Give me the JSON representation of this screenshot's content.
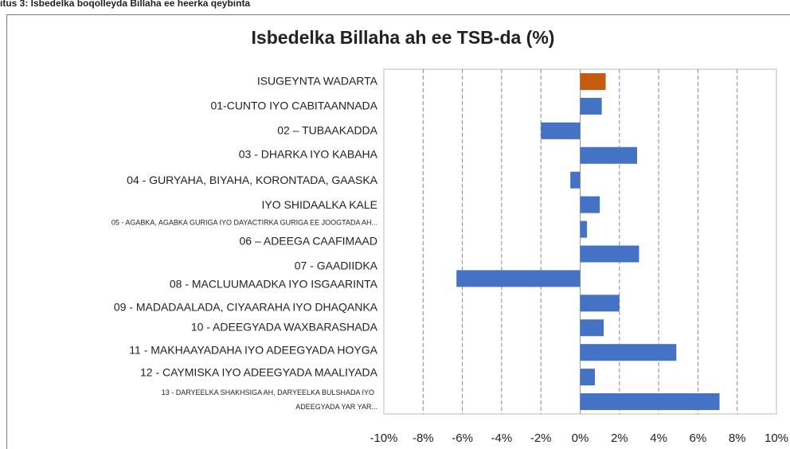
{
  "chart_data": {
    "type": "barh",
    "caption": "itus 3: Isbedelka boqolleyda Billaha ee heerka qeybinta",
    "title": "Isbedelka Billaha ah ee TSB-da (%)",
    "categories": [
      "ISUGEYNTA WADARTA",
      "01-CUNTO IYO CABITAANNADA",
      "02 – TUBAAKADDA",
      "03 - DHARKA IYO KABAHA",
      "04 - GURYAHA, BIYAHA, KORONTADA, GAASKA IYO SHIDAALKA KALE",
      "05 - AGABKA, AGABKA GURIGA IYO DAYACTIRKA GURIGA EE JOOGTADA AH...",
      "06 – ADEEGA CAAFIMAAD",
      "07 - GAADIIDKA",
      "08 - MACLUUMAADKA IYO ISGAARINTA",
      "09 - MADADAALADA, CIYAARAHA IYO DHAQANKA",
      "10 - ADEEGYADA WAXBARASHADA",
      "11 - MAKHAAYADAHA IYO ADEEGYADA HOYGA",
      "12 - CAYMISKA IYO ADEEGYADA MAALIYADA",
      "13 - DARYEELKA SHAKHSIGA AH, DARYEELKA BULSHADA IYO ADEEGYADA YAR YAR..."
    ],
    "values": [
      1.3,
      1.1,
      -2.0,
      2.9,
      -0.5,
      1.0,
      0.35,
      3.0,
      -6.3,
      2.0,
      1.2,
      4.9,
      0.75,
      7.1
    ],
    "colors": [
      "#c55a11",
      "#4472c4",
      "#4472c4",
      "#4472c4",
      "#4472c4",
      "#4472c4",
      "#4472c4",
      "#4472c4",
      "#4472c4",
      "#4472c4",
      "#4472c4",
      "#4472c4",
      "#4472c4",
      "#4472c4"
    ],
    "xlim": [
      -10,
      10
    ],
    "xticks": [
      {
        "value": -10,
        "label": "-10%"
      },
      {
        "value": -8,
        "label": "-8%"
      },
      {
        "value": -6,
        "label": "-6%"
      },
      {
        "value": -4,
        "label": "-4%"
      },
      {
        "value": -2,
        "label": "-2%"
      },
      {
        "value": 0,
        "label": "0%"
      },
      {
        "value": 2,
        "label": "2%"
      },
      {
        "value": 4,
        "label": "4%"
      },
      {
        "value": 6,
        "label": "6%"
      },
      {
        "value": 8,
        "label": "8%"
      },
      {
        "value": 10,
        "label": "10%"
      }
    ],
    "grid": true
  }
}
